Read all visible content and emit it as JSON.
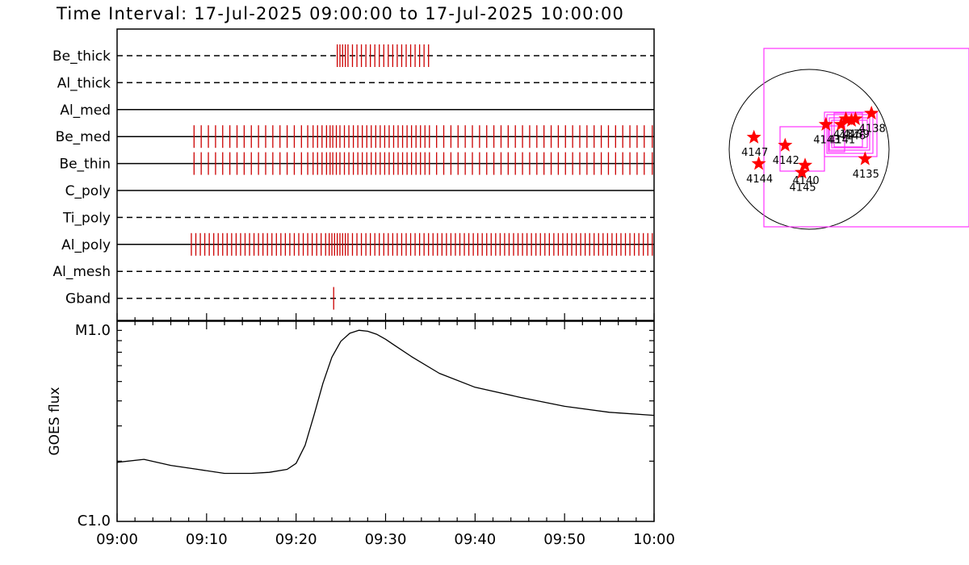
{
  "title": "Time Interval: 17-Jul-2025 09:00:00 to 17-Jul-2025 10:00:00",
  "colors": {
    "event": "#cc0000",
    "fov": "#ff33ff",
    "star": "#ff0000",
    "axis": "#000000"
  },
  "chart_data": [
    {
      "type": "timeline",
      "time_range_min": [
        0,
        60
      ],
      "rows": [
        {
          "label": "Be_thick",
          "style": "dashed",
          "events_min": [
            24.6,
            24.9,
            25.2,
            25.5,
            25.8,
            26.3,
            26.8,
            27.3,
            27.8,
            28.3,
            28.8,
            29.3,
            29.8,
            30.3,
            30.8,
            31.3,
            31.8,
            32.3,
            32.8,
            33.3,
            33.8,
            34.3,
            34.8
          ]
        },
        {
          "label": "Al_thick",
          "style": "dashed",
          "events_min": []
        },
        {
          "label": "Al_med",
          "style": "solid",
          "events_min": []
        },
        {
          "label": "Be_med",
          "style": "solid",
          "events_min": [
            8.6,
            9.4,
            10.2,
            11.0,
            11.8,
            12.6,
            13.4,
            14.2,
            15.0,
            15.8,
            16.6,
            17.4,
            18.2,
            19.0,
            19.8,
            20.6,
            21.3,
            21.9,
            22.4,
            22.9,
            23.4,
            23.8,
            24.1,
            24.5,
            24.9,
            25.4,
            25.9,
            26.4,
            26.9,
            27.4,
            27.9,
            28.4,
            28.9,
            29.4,
            29.9,
            30.4,
            30.9,
            31.4,
            31.9,
            32.4,
            32.9,
            33.4,
            33.9,
            34.4,
            34.9,
            35.7,
            36.5,
            37.3,
            38.1,
            38.9,
            39.7,
            40.5,
            41.3,
            42.1,
            42.9,
            43.7,
            44.5,
            45.3,
            46.1,
            46.9,
            47.7,
            48.5,
            49.3,
            50.1,
            50.9,
            51.7,
            52.5,
            53.3,
            54.1,
            54.9,
            55.7,
            56.5,
            57.3,
            58.1,
            58.9,
            59.8
          ]
        },
        {
          "label": "Be_thin",
          "style": "solid",
          "events_min": [
            8.6,
            9.4,
            10.2,
            11.0,
            11.8,
            12.6,
            13.4,
            14.2,
            15.0,
            15.8,
            16.6,
            17.4,
            18.2,
            19.0,
            19.8,
            20.6,
            21.3,
            21.9,
            22.4,
            22.9,
            23.4,
            23.8,
            24.1,
            24.5,
            24.9,
            25.4,
            25.9,
            26.4,
            26.9,
            27.4,
            27.9,
            28.4,
            28.9,
            29.4,
            29.9,
            30.4,
            30.9,
            31.4,
            31.9,
            32.4,
            32.9,
            33.4,
            33.9,
            34.4,
            34.9,
            35.7,
            36.5,
            37.3,
            38.1,
            38.9,
            39.7,
            40.5,
            41.3,
            42.1,
            42.9,
            43.7,
            44.5,
            45.3,
            46.1,
            46.9,
            47.7,
            48.5,
            49.3,
            50.1,
            50.9,
            51.7,
            52.5,
            53.3,
            54.1,
            54.9,
            55.7,
            56.5,
            57.3,
            58.1,
            58.9,
            59.8
          ]
        },
        {
          "label": "C_poly",
          "style": "solid",
          "events_min": []
        },
        {
          "label": "Ti_poly",
          "style": "dashed",
          "events_min": []
        },
        {
          "label": "Al_poly",
          "style": "solid",
          "events_min": [
            8.3,
            8.8,
            9.3,
            9.8,
            10.3,
            10.8,
            11.3,
            11.8,
            12.3,
            12.8,
            13.3,
            13.8,
            14.3,
            14.8,
            15.3,
            15.8,
            16.3,
            16.8,
            17.3,
            17.8,
            18.3,
            18.8,
            19.3,
            19.8,
            20.3,
            20.8,
            21.3,
            21.8,
            22.3,
            22.8,
            23.3,
            23.7,
            24.0,
            24.3,
            24.6,
            24.9,
            25.2,
            25.5,
            25.8,
            26.3,
            26.8,
            27.3,
            27.8,
            28.3,
            28.8,
            29.3,
            29.8,
            30.3,
            30.8,
            31.3,
            31.8,
            32.3,
            32.8,
            33.3,
            33.8,
            34.3,
            34.8,
            35.3,
            35.8,
            36.3,
            36.8,
            37.3,
            37.8,
            38.3,
            38.8,
            39.3,
            39.8,
            40.3,
            40.8,
            41.3,
            41.8,
            42.3,
            42.8,
            43.3,
            43.8,
            44.3,
            44.8,
            45.3,
            45.8,
            46.3,
            46.8,
            47.3,
            47.8,
            48.3,
            48.8,
            49.3,
            49.8,
            50.3,
            50.8,
            51.3,
            51.8,
            52.3,
            52.8,
            53.3,
            53.8,
            54.3,
            54.8,
            55.3,
            55.8,
            56.3,
            56.8,
            57.3,
            57.8,
            58.3,
            58.8,
            59.3,
            59.8
          ]
        },
        {
          "label": "Al_mesh",
          "style": "dashed",
          "events_min": []
        },
        {
          "label": "Gband",
          "style": "dashed",
          "events_min": [
            24.2
          ]
        }
      ]
    },
    {
      "type": "line",
      "ylabel": "GOES flux",
      "y_scale": "log",
      "y_ticklabels": [
        "C1.0",
        "M1.0"
      ],
      "x_ticklabels": [
        "09:00",
        "09:10",
        "09:20",
        "09:30",
        "09:40",
        "09:50",
        "10:00"
      ],
      "x_range_min": [
        0,
        60
      ],
      "series": [
        {
          "x_min": [
            0,
            3,
            6,
            9,
            12,
            15,
            17,
            19,
            20,
            21,
            22,
            23,
            24,
            25,
            26,
            27,
            28,
            29,
            30,
            31,
            33,
            36,
            40,
            45,
            50,
            55,
            60
          ],
          "y_log10": [
            -5.705,
            -5.69,
            -5.72,
            -5.74,
            -5.76,
            -5.76,
            -5.755,
            -5.74,
            -5.71,
            -5.62,
            -5.47,
            -5.31,
            -5.18,
            -5.1,
            -5.06,
            -5.045,
            -5.05,
            -5.065,
            -5.09,
            -5.12,
            -5.18,
            -5.26,
            -5.33,
            -5.38,
            -5.425,
            -5.455,
            -5.47
          ]
        }
      ]
    },
    {
      "type": "scatter",
      "description_free": true,
      "labels": [
        "4138",
        "4139",
        "4135",
        "4140",
        "4141",
        "4142",
        "4143",
        "4144",
        "4145",
        "4147",
        "4146",
        "4137"
      ],
      "points": [
        {
          "label": "4138",
          "hpc": [
            0.78,
            0.45
          ]
        },
        {
          "label": "4139",
          "hpc": [
            0.58,
            0.38
          ]
        },
        {
          "label": "4137",
          "hpc": [
            0.46,
            0.38
          ]
        },
        {
          "label": "4146",
          "hpc": [
            0.53,
            0.36
          ]
        },
        {
          "label": "4143",
          "hpc": [
            0.21,
            0.31
          ]
        },
        {
          "label": "4141",
          "hpc": [
            0.4,
            0.31
          ]
        },
        {
          "label": "4135",
          "hpc": [
            0.7,
            -0.12
          ]
        },
        {
          "label": "4142",
          "hpc": [
            -0.3,
            0.05
          ]
        },
        {
          "label": "4147",
          "hpc": [
            -0.69,
            0.15
          ]
        },
        {
          "label": "4144",
          "hpc": [
            -0.63,
            -0.18
          ]
        },
        {
          "label": "4140",
          "hpc": [
            -0.05,
            -0.2
          ]
        },
        {
          "label": "4145",
          "hpc": [
            -0.09,
            -0.29
          ]
        }
      ]
    }
  ]
}
